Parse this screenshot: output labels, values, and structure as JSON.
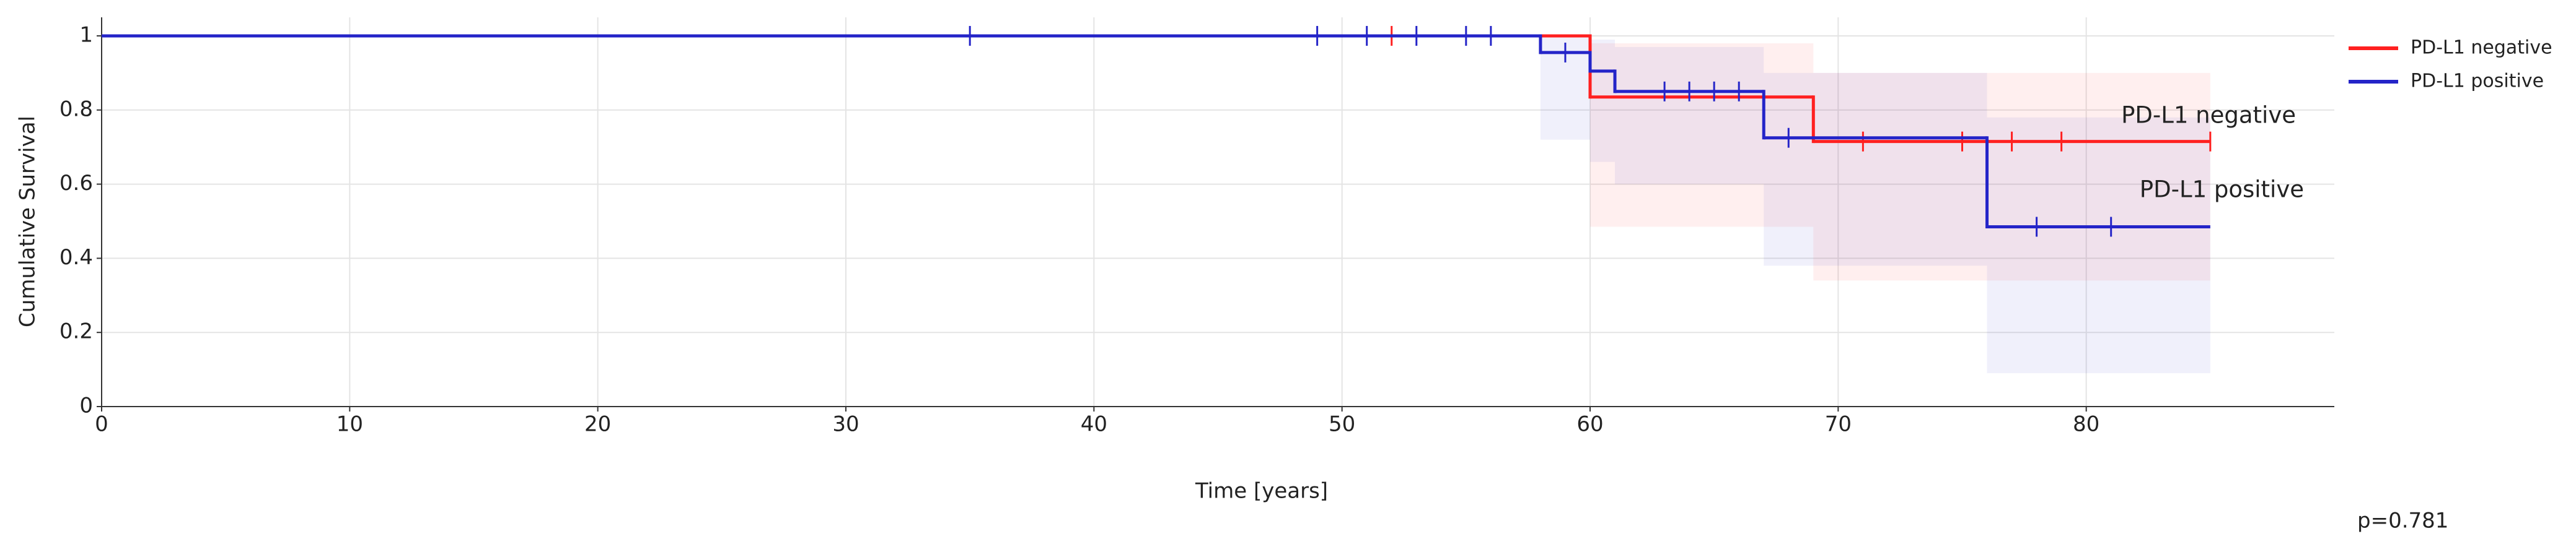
{
  "chart_data": {
    "type": "kaplan-meier",
    "x_label": "Time [years]",
    "y_label": "Cumulative Survival",
    "xlim": [
      0,
      90
    ],
    "ylim": [
      0,
      1.05
    ],
    "xticks": [
      0,
      10,
      20,
      30,
      40,
      50,
      60,
      70,
      80
    ],
    "yticks": [
      0,
      0.2,
      0.4,
      0.6,
      0.8,
      1
    ],
    "grid": true,
    "legend": "outside-top-right",
    "series": [
      {
        "name": "PD-L1 negative",
        "color": "#ff2020",
        "x": [
          0,
          60,
          69,
          85
        ],
        "values": [
          1,
          0.835,
          0.715,
          0.715
        ],
        "lower": [
          1,
          0.485,
          0.34,
          0.34
        ],
        "upper": [
          1,
          0.98,
          0.9,
          0.9
        ],
        "censored": [
          52,
          71,
          75,
          77,
          79,
          85
        ]
      },
      {
        "name": "PD-L1 positive",
        "color": "#2424c8",
        "x": [
          0,
          58,
          60,
          61,
          67,
          76,
          85
        ],
        "values": [
          1,
          0.955,
          0.905,
          0.85,
          0.725,
          0.485,
          0.485
        ],
        "lower": [
          1,
          0.72,
          0.66,
          0.6,
          0.38,
          0.09,
          0.09
        ],
        "upper": [
          1,
          1,
          0.99,
          0.97,
          0.9,
          0.78,
          0.78
        ],
        "censored": [
          35,
          49,
          51,
          53,
          55,
          56,
          59,
          63,
          64,
          65,
          66,
          68,
          78,
          81
        ]
      }
    ],
    "annotations": [
      "PD-L1 negative",
      "PD-L1 positive"
    ],
    "p_value": "p=0.781"
  }
}
